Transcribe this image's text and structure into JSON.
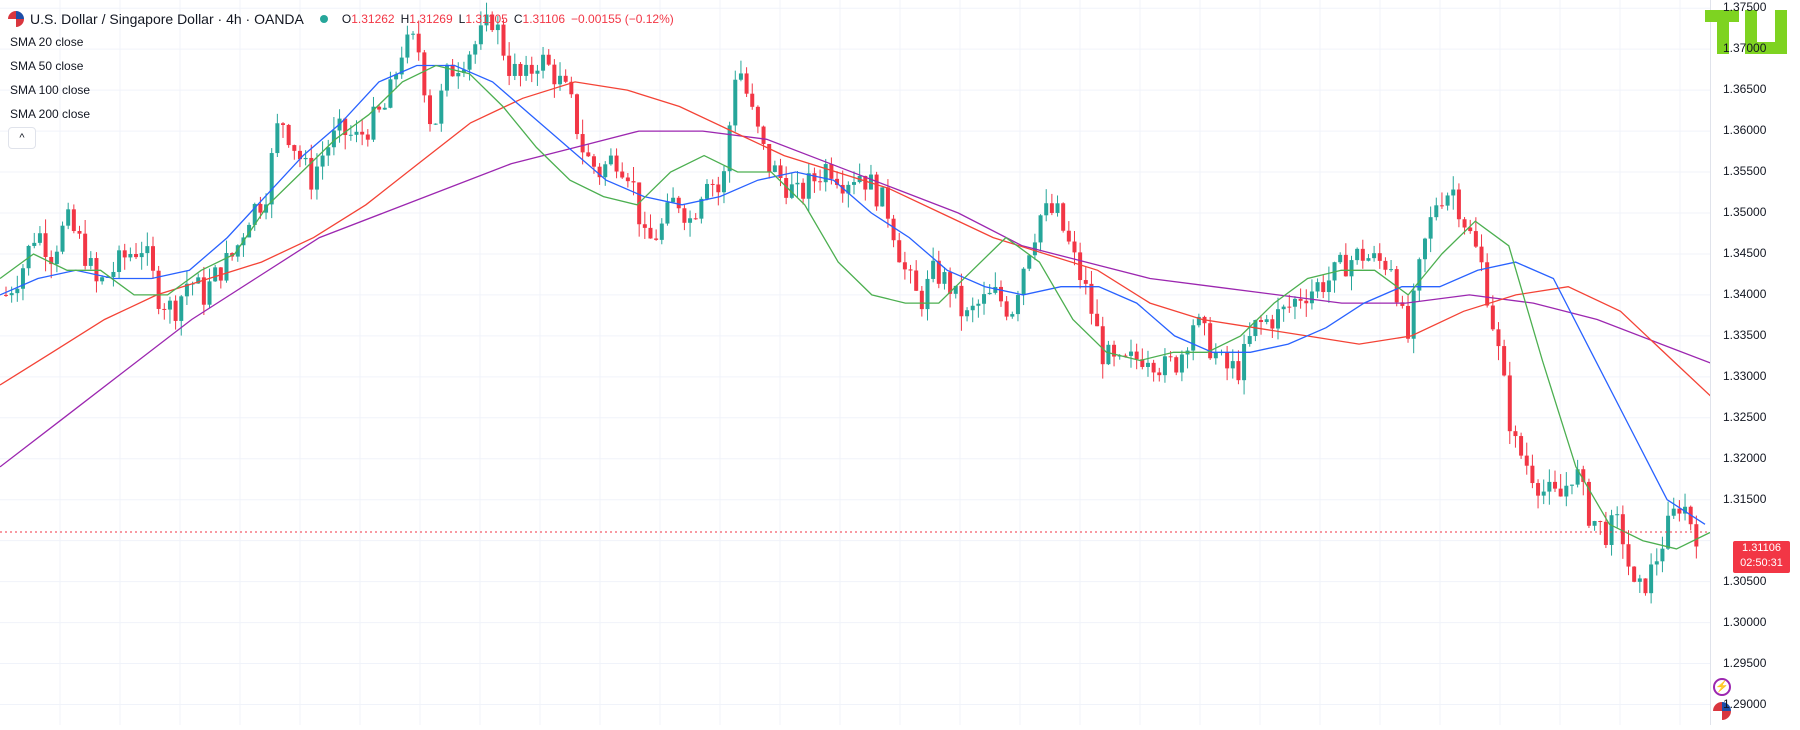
{
  "header": {
    "title": "U.S. Dollar / Singapore Dollar · 4h · OANDA",
    "open_label": "O",
    "open": "1.31262",
    "high_label": "H",
    "high": "1.31269",
    "low_label": "L",
    "low": "1.31105",
    "close_label": "C",
    "close": "1.31106",
    "change": "−0.00155 (−0.12%)"
  },
  "indicators": [
    "SMA 20 close",
    "SMA 50 close",
    "SMA 100 close",
    "SMA 200 close"
  ],
  "colors": {
    "up": "#26a69a",
    "down": "#f23645",
    "sma20": "#4caf50",
    "sma50": "#2962ff",
    "sma100": "#f44336",
    "sma200": "#9c27b0",
    "logo": "#7ed321"
  },
  "price_tag": {
    "price": "1.31106",
    "countdown": "02:50:31"
  },
  "icons": [
    "flag-icon",
    "chevron-up-icon",
    "lightning-icon",
    "flag-icon",
    "tradingview-logo"
  ],
  "chart_data": {
    "type": "candlestick",
    "symbol": "USD/SGD",
    "timeframe": "4h",
    "ylim": [
      1.2875,
      1.376
    ],
    "y_ticks": [
      1.29,
      1.295,
      1.3,
      1.305,
      1.31,
      1.315,
      1.32,
      1.325,
      1.33,
      1.335,
      1.34,
      1.345,
      1.35,
      1.355,
      1.36,
      1.365,
      1.37,
      1.375
    ],
    "y_tick_labels": [
      "1.29000",
      "1.29500",
      "1.30000",
      "1.30500",
      "",
      "1.31500",
      "1.32000",
      "1.32500",
      "1.33000",
      "1.33500",
      "1.34000",
      "1.34500",
      "1.35000",
      "1.35500",
      "1.36000",
      "1.36500",
      "1.37000",
      "1.37500"
    ],
    "price_path": [
      1.34,
      1.343,
      1.348,
      1.345,
      1.349,
      1.346,
      1.341,
      1.343,
      1.345,
      1.346,
      1.34,
      1.338,
      1.342,
      1.34,
      1.343,
      1.345,
      1.35,
      1.352,
      1.362,
      1.358,
      1.354,
      1.358,
      1.36,
      1.359,
      1.361,
      1.363,
      1.37,
      1.371,
      1.36,
      1.367,
      1.369,
      1.371,
      1.374,
      1.368,
      1.366,
      1.369,
      1.367,
      1.364,
      1.357,
      1.355,
      1.357,
      1.355,
      1.346,
      1.348,
      1.352,
      1.349,
      1.355,
      1.352,
      1.369,
      1.362,
      1.356,
      1.354,
      1.352,
      1.354,
      1.356,
      1.354,
      1.355,
      1.353,
      1.35,
      1.343,
      1.339,
      1.343,
      1.341,
      1.337,
      1.339,
      1.34,
      1.338,
      1.345,
      1.35,
      1.35,
      1.345,
      1.34,
      1.333,
      1.331,
      1.332,
      1.333,
      1.331,
      1.332,
      1.337,
      1.334,
      1.331,
      1.331,
      1.336,
      1.337,
      1.338,
      1.34,
      1.341,
      1.342,
      1.344,
      1.345,
      1.344,
      1.344,
      1.334,
      1.345,
      1.352,
      1.353,
      1.348,
      1.343,
      1.333,
      1.322,
      1.319,
      1.316,
      1.315,
      1.319,
      1.313,
      1.311,
      1.312,
      1.303,
      1.306,
      1.311,
      1.315,
      1.311
    ],
    "sma20": [
      1.342,
      1.345,
      1.343,
      1.343,
      1.34,
      1.34,
      1.343,
      1.345,
      1.351,
      1.355,
      1.359,
      1.362,
      1.366,
      1.368,
      1.367,
      1.363,
      1.358,
      1.354,
      1.352,
      1.351,
      1.355,
      1.357,
      1.355,
      1.355,
      1.351,
      1.344,
      1.34,
      1.339,
      1.339,
      1.343,
      1.347,
      1.344,
      1.337,
      1.333,
      1.332,
      1.333,
      1.333,
      1.335,
      1.339,
      1.342,
      1.343,
      1.343,
      1.34,
      1.345,
      1.349,
      1.346,
      1.332,
      1.319,
      1.312,
      1.31,
      1.309,
      1.311
    ],
    "sma50": [
      1.34,
      1.342,
      1.343,
      1.342,
      1.342,
      1.343,
      1.347,
      1.352,
      1.357,
      1.361,
      1.366,
      1.368,
      1.368,
      1.366,
      1.362,
      1.358,
      1.354,
      1.352,
      1.351,
      1.352,
      1.354,
      1.355,
      1.354,
      1.35,
      1.347,
      1.343,
      1.341,
      1.34,
      1.341,
      1.341,
      1.339,
      1.335,
      1.333,
      1.333,
      1.334,
      1.336,
      1.339,
      1.341,
      1.341,
      1.343,
      1.344,
      1.342,
      1.333,
      1.324,
      1.315,
      1.312
    ],
    "sma100": [
      1.329,
      1.333,
      1.337,
      1.34,
      1.342,
      1.344,
      1.347,
      1.351,
      1.356,
      1.361,
      1.364,
      1.366,
      1.365,
      1.363,
      1.36,
      1.357,
      1.355,
      1.353,
      1.35,
      1.347,
      1.345,
      1.343,
      1.339,
      1.337,
      1.336,
      1.335,
      1.334,
      1.335,
      1.338,
      1.34,
      1.341,
      1.338,
      1.332,
      1.326
    ],
    "sma200": [
      1.319,
      1.325,
      1.331,
      1.337,
      1.342,
      1.347,
      1.35,
      1.353,
      1.356,
      1.358,
      1.36,
      1.36,
      1.359,
      1.356,
      1.353,
      1.35,
      1.346,
      1.344,
      1.342,
      1.341,
      1.34,
      1.339,
      1.339,
      1.34,
      1.339,
      1.337,
      1.334,
      1.331
    ],
    "last_price": 1.31106
  }
}
